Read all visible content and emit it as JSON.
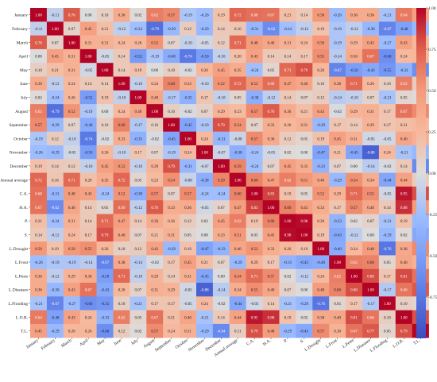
{
  "chart_data": {
    "type": "heatmap",
    "title": "",
    "xlabel": "",
    "ylabel": "",
    "colormap": "coolwarm",
    "vmin": -1,
    "vmax": 1,
    "colorbar_ticks": [
      "1.00",
      "0.75",
      "0.50",
      "0.25",
      "0.00",
      "-0.25",
      "-0.50",
      "-0.75"
    ],
    "colorbar_tick_values": [
      1.0,
      0.75,
      0.5,
      0.25,
      0.0,
      -0.25,
      -0.5,
      -0.75
    ],
    "labels": [
      "January",
      "February",
      "March",
      "April",
      "May",
      "June",
      "July",
      "August",
      "September",
      "October",
      "November",
      "December",
      "Annual average",
      "C.A.",
      "H.A.",
      "P.",
      "S.",
      "L.Drought",
      "L.Frost",
      "L.Pests",
      "L.Diseases",
      "L.Flooding",
      "L.O.R.",
      "T.L."
    ],
    "values": [
      [
        1.0,
        -0.11,
        0.76,
        0.0,
        0.1,
        0.36,
        0.02,
        0.62,
        0.57,
        -0.19,
        -0.26,
        0.19,
        0.72,
        0.68,
        0.67,
        0.21,
        0.14,
        0.5,
        -0.26,
        0.36,
        0.36,
        -0.21,
        0.64,
        0.45
      ],
      [
        -0.11,
        1.0,
        0.07,
        0.45,
        0.21,
        -0.12,
        -0.24,
        -0.79,
        -0.29,
        0.12,
        -0.29,
        0.14,
        0.16,
        -0.31,
        -0.62,
        -0.24,
        -0.12,
        0.19,
        -0.19,
        -0.12,
        -0.3,
        -0.67,
        -0.48,
        -0.29
      ],
      [
        0.76,
        0.07,
        1.0,
        0.31,
        0.31,
        0.24,
        0.26,
        0.52,
        0.07,
        -0.1,
        -0.05,
        0.12,
        0.71,
        0.48,
        0.4,
        0.31,
        0.24,
        0.5,
        -0.19,
        0.29,
        0.43,
        -0.27,
        0.43,
        0.26
      ],
      [
        0.0,
        0.45,
        0.31,
        1.0,
        -0.05,
        0.14,
        -0.52,
        -0.19,
        -0.4,
        -0.74,
        -0.5,
        -0.1,
        0.2,
        0.43,
        0.14,
        0.14,
        0.17,
        0.55,
        -0.14,
        0.36,
        0.67,
        -0.6,
        0.24,
        0.26
      ],
      [
        0.1,
        0.21,
        0.31,
        -0.05,
        1.0,
        0.14,
        0.19,
        0.0,
        0.1,
        -0.02,
        0.26,
        0.45,
        0.35,
        -0.24,
        0.05,
        0.71,
        0.79,
        0.26,
        -0.67,
        -0.5,
        -0.43,
        -0.55,
        -0.33,
        -0.6
      ],
      [
        0.36,
        -0.12,
        0.24,
        0.14,
        0.14,
        1.0,
        -0.1,
        0.24,
        0.6,
        0.33,
        -0.1,
        0.52,
        0.72,
        0.52,
        0.69,
        0.47,
        0.4,
        0.1,
        0.38,
        0.71,
        0.26,
        0.1,
        0.62,
        0.12
      ],
      [
        0.02,
        -0.24,
        0.26,
        -0.52,
        0.19,
        -0.1,
        1.0,
        0.4,
        -0.17,
        -0.35,
        0.17,
        -0.1,
        0.05,
        -0.38,
        -0.12,
        0.14,
        0.07,
        0.12,
        -0.14,
        -0.1,
        0.07,
        -0.21,
        0.05,
        0.02
      ],
      [
        0.62,
        -0.79,
        0.52,
        -0.19,
        0.0,
        0.24,
        0.4,
        1.0,
        0.1,
        -0.02,
        0.07,
        0.29,
        0.23,
        0.57,
        0.76,
        0.36,
        0.21,
        0.43,
        -0.02,
        0.29,
        0.31,
        0.17,
        0.67,
        0.57
      ],
      [
        0.57,
        -0.29,
        0.07,
        -0.4,
        0.1,
        0.6,
        -0.17,
        0.1,
        1.0,
        -0.45,
        -0.19,
        0.79,
        0.54,
        0.07,
        0.33,
        0.26,
        0.31,
        -0.29,
        0.17,
        0.14,
        0.29,
        0.17,
        0.21,
        0.24
      ],
      [
        -0.19,
        0.12,
        -0.1,
        -0.74,
        -0.02,
        0.33,
        -0.35,
        -0.02,
        -0.45,
        1.0,
        0.24,
        -0.31,
        -0.08,
        0.57,
        0.36,
        0.12,
        0.05,
        0.19,
        0.45,
        0.31,
        -0.05,
        -0.05,
        0.4,
        0.31
      ],
      [
        -0.26,
        -0.29,
        -0.05,
        -0.5,
        0.26,
        -0.1,
        0.17,
        0.07,
        -0.19,
        0.24,
        1.0,
        -0.07,
        -0.38,
        -0.24,
        -0.05,
        0.02,
        0.0,
        -0.47,
        0.21,
        -0.45,
        -0.88,
        0.24,
        -0.21,
        -0.29
      ],
      [
        0.19,
        0.14,
        0.12,
        -0.1,
        0.45,
        0.52,
        -0.1,
        0.29,
        0.79,
        -0.31,
        -0.07,
        1.0,
        0.59,
        -0.24,
        0.07,
        0.45,
        0.33,
        -0.33,
        0.07,
        0.0,
        -0.14,
        -0.02,
        0.14,
        -0.64
      ],
      [
        0.72,
        0.16,
        0.71,
        0.2,
        0.35,
        0.72,
        0.05,
        0.23,
        0.54,
        -0.08,
        -0.38,
        0.59,
        1.0,
        0.6,
        0.47,
        0.62,
        0.51,
        0.4,
        -0.29,
        0.54,
        0.34,
        -0.44,
        0.44,
        0.11
      ],
      [
        0.68,
        -0.31,
        0.48,
        0.43,
        -0.24,
        0.52,
        -0.38,
        0.57,
        0.07,
        0.57,
        -0.24,
        -0.24,
        0.6,
        1.0,
        0.83,
        0.19,
        0.05,
        0.52,
        0.29,
        0.71,
        0.55,
        -0.05,
        0.95,
        0.79
      ],
      [
        0.67,
        -0.62,
        0.4,
        0.14,
        0.05,
        0.69,
        -0.12,
        0.76,
        0.33,
        0.36,
        -0.05,
        0.07,
        0.47,
        0.83,
        1.0,
        0.6,
        0.45,
        0.33,
        0.17,
        0.57,
        0.4,
        0.14,
        0.88,
        0.48
      ],
      [
        0.21,
        -0.24,
        0.31,
        0.14,
        0.71,
        0.47,
        0.14,
        0.36,
        0.26,
        0.12,
        0.02,
        0.45,
        0.62,
        0.19,
        0.6,
        1.0,
        0.98,
        0.26,
        -0.33,
        0.02,
        0.07,
        -0.21,
        0.19,
        -0.29
      ],
      [
        0.14,
        -0.12,
        0.24,
        0.17,
        0.79,
        0.4,
        0.07,
        0.21,
        0.31,
        0.05,
        0.0,
        0.33,
        0.51,
        0.05,
        0.45,
        0.98,
        1.0,
        0.19,
        -0.43,
        -0.12,
        0.0,
        -0.29,
        0.02,
        -0.43
      ],
      [
        0.5,
        0.19,
        0.5,
        0.55,
        0.26,
        0.1,
        0.12,
        0.43,
        -0.29,
        0.19,
        -0.47,
        -0.33,
        0.4,
        0.52,
        0.33,
        0.26,
        0.19,
        1.0,
        -0.4,
        0.24,
        0.48,
        -0.76,
        0.38,
        0.57
      ],
      [
        -0.26,
        -0.19,
        -0.19,
        -0.14,
        -0.67,
        0.38,
        -0.14,
        -0.02,
        0.17,
        0.45,
        0.21,
        0.07,
        -0.29,
        0.29,
        0.17,
        -0.33,
        -0.43,
        -0.4,
        1.0,
        0.62,
        0.6,
        0.05,
        0.4,
        0.3
      ],
      [
        0.36,
        -0.12,
        0.29,
        0.36,
        -0.5,
        0.71,
        -0.1,
        0.29,
        0.14,
        0.31,
        -0.45,
        0.0,
        0.54,
        0.71,
        0.57,
        0.02,
        -0.12,
        0.24,
        0.62,
        1.0,
        0.8,
        0.17,
        0.81,
        0.67
      ],
      [
        0.36,
        -0.3,
        0.43,
        0.67,
        -0.43,
        0.26,
        0.07,
        0.31,
        0.29,
        -0.05,
        -0.88,
        -0.14,
        0.34,
        0.55,
        0.4,
        0.07,
        0.0,
        0.48,
        0.6,
        0.8,
        1.0,
        -0.17,
        0.66,
        0.77
      ],
      [
        -0.21,
        -0.67,
        -0.27,
        -0.6,
        -0.55,
        0.1,
        -0.21,
        0.17,
        0.17,
        -0.05,
        0.24,
        -0.02,
        -0.44,
        -0.05,
        0.14,
        -0.21,
        -0.29,
        -0.76,
        0.05,
        0.17,
        -0.17,
        1.0,
        0.1,
        0.05
      ],
      [
        0.64,
        -0.48,
        0.43,
        0.24,
        -0.33,
        0.62,
        0.05,
        0.67,
        0.21,
        0.4,
        -0.21,
        0.14,
        0.44,
        0.95,
        0.88,
        0.19,
        0.02,
        0.38,
        0.4,
        0.81,
        0.66,
        0.1,
        1.0,
        0.79
      ],
      [
        0.45,
        -0.29,
        0.26,
        0.26,
        -0.6,
        0.12,
        0.02,
        0.57,
        0.24,
        0.31,
        -0.29,
        -0.64,
        0.11,
        0.79,
        0.48,
        -0.29,
        -0.43,
        0.57,
        0.3,
        0.67,
        0.77,
        0.05,
        0.79,
        1.0
      ]
    ]
  }
}
